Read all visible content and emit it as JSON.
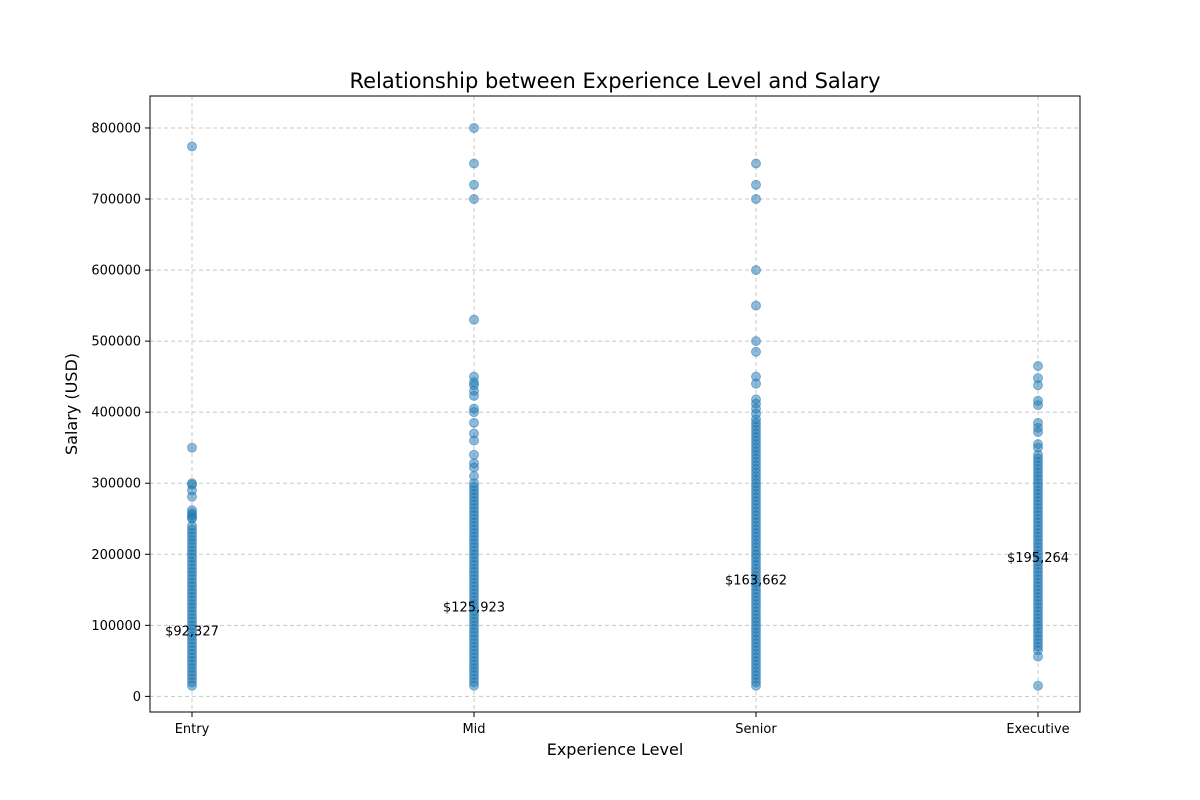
{
  "chart_data": {
    "type": "scatter",
    "title": "Relationship between Experience Level and Salary",
    "xlabel": "Experience Level",
    "ylabel": "Salary (USD)",
    "categories": [
      "Entry",
      "Mid",
      "Senior",
      "Executive"
    ],
    "ylim": [
      -22000,
      845000
    ],
    "yticks": [
      0,
      100000,
      200000,
      300000,
      400000,
      500000,
      600000,
      700000,
      800000
    ],
    "ytick_labels": [
      "0",
      "100000",
      "200000",
      "300000",
      "400000",
      "500000",
      "600000",
      "700000",
      "800000"
    ],
    "grid": true,
    "marker_color": "#1f77b4",
    "marker_alpha": 0.5,
    "series": [
      {
        "category": "Entry",
        "values": [
          774000,
          350000,
          300000,
          298000,
          290000,
          281000,
          262000,
          258000,
          255000,
          252000,
          250000,
          240000,
          235000,
          230000,
          225000,
          220000,
          215000,
          210000,
          205000,
          200000,
          195000,
          190000,
          185000,
          180000,
          175000,
          170000,
          165000,
          160000,
          155000,
          150000,
          145000,
          140000,
          135000,
          130000,
          125000,
          120000,
          115000,
          110000,
          105000,
          100000,
          95000,
          90000,
          85000,
          80000,
          75000,
          70000,
          65000,
          60000,
          55000,
          50000,
          45000,
          40000,
          35000,
          30000,
          25000,
          20000,
          15000
        ]
      },
      {
        "category": "Mid",
        "values": [
          800000,
          750000,
          720000,
          700000,
          530000,
          450000,
          442000,
          438000,
          430000,
          423000,
          405000,
          400000,
          385000,
          370000,
          360000,
          340000,
          328000,
          322000,
          310000,
          300000,
          295000,
          290000,
          285000,
          280000,
          275000,
          270000,
          265000,
          260000,
          255000,
          250000,
          245000,
          240000,
          235000,
          230000,
          225000,
          220000,
          215000,
          210000,
          205000,
          200000,
          195000,
          190000,
          185000,
          180000,
          175000,
          170000,
          165000,
          160000,
          155000,
          150000,
          145000,
          140000,
          135000,
          130000,
          125000,
          120000,
          115000,
          110000,
          105000,
          100000,
          95000,
          90000,
          85000,
          80000,
          75000,
          70000,
          65000,
          60000,
          55000,
          50000,
          45000,
          40000,
          35000,
          30000,
          25000,
          20000,
          15000
        ]
      },
      {
        "category": "Senior",
        "values": [
          750000,
          720000,
          700000,
          600000,
          550000,
          500000,
          485000,
          450000,
          440000,
          418000,
          412000,
          405000,
          398000,
          390000,
          385000,
          380000,
          375000,
          370000,
          365000,
          360000,
          355000,
          350000,
          345000,
          340000,
          335000,
          330000,
          325000,
          320000,
          315000,
          310000,
          305000,
          300000,
          295000,
          290000,
          285000,
          280000,
          275000,
          270000,
          265000,
          260000,
          255000,
          250000,
          245000,
          240000,
          235000,
          230000,
          225000,
          220000,
          215000,
          210000,
          205000,
          200000,
          195000,
          190000,
          185000,
          180000,
          175000,
          170000,
          165000,
          160000,
          155000,
          150000,
          145000,
          140000,
          135000,
          130000,
          125000,
          120000,
          115000,
          110000,
          105000,
          100000,
          95000,
          90000,
          85000,
          80000,
          75000,
          70000,
          65000,
          60000,
          55000,
          50000,
          45000,
          40000,
          35000,
          30000,
          25000,
          20000,
          15000
        ]
      },
      {
        "category": "Executive",
        "values": [
          465000,
          448000,
          438000,
          416000,
          410000,
          385000,
          378000,
          372000,
          355000,
          350000,
          340000,
          335000,
          330000,
          325000,
          320000,
          315000,
          310000,
          305000,
          300000,
          295000,
          290000,
          285000,
          280000,
          275000,
          270000,
          265000,
          260000,
          255000,
          250000,
          245000,
          240000,
          235000,
          230000,
          225000,
          220000,
          215000,
          210000,
          205000,
          200000,
          195000,
          190000,
          185000,
          180000,
          175000,
          170000,
          165000,
          160000,
          155000,
          150000,
          145000,
          140000,
          135000,
          130000,
          125000,
          120000,
          115000,
          110000,
          105000,
          100000,
          95000,
          90000,
          85000,
          80000,
          75000,
          70000,
          65000,
          56000,
          15000
        ]
      }
    ],
    "annotations": [
      {
        "category": "Entry",
        "text": "$92,327",
        "value": 92327
      },
      {
        "category": "Mid",
        "text": "$125,923",
        "value": 125923
      },
      {
        "category": "Senior",
        "text": "$163,662",
        "value": 163662
      },
      {
        "category": "Executive",
        "text": "$195,264",
        "value": 195264
      }
    ]
  }
}
